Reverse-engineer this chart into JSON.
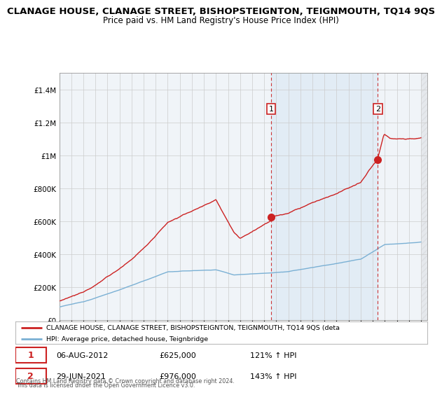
{
  "title": "CLANAGE HOUSE, CLANAGE STREET, BISHOPSTEIGNTON, TEIGNMOUTH, TQ14 9QS",
  "subtitle": "Price paid vs. HM Land Registry's House Price Index (HPI)",
  "ylim": [
    0,
    1500000
  ],
  "yticks": [
    0,
    200000,
    400000,
    600000,
    800000,
    1000000,
    1200000,
    1400000
  ],
  "ytick_labels": [
    "£0",
    "£200K",
    "£400K",
    "£600K",
    "£800K",
    "£1M",
    "£1.2M",
    "£1.4M"
  ],
  "year_start": 1995,
  "year_end": 2025,
  "sale1_year": 2012.583,
  "sale2_year": 2021.417,
  "sale1_date": "06-AUG-2012",
  "sale1_price": 625000,
  "sale1_pct": "121%",
  "sale2_date": "29-JUN-2021",
  "sale2_price": 976000,
  "sale2_pct": "143%",
  "red_line_color": "#cc2222",
  "blue_line_color": "#7ab0d4",
  "vline_color": "#cc2222",
  "shade_color": "#ddeeff",
  "legend_label1": "CLANAGE HOUSE, CLANAGE STREET, BISHOPSTEIGNTON, TEIGNMOUTH, TQ14 9QS (deta",
  "legend_label2": "HPI: Average price, detached house, Teignbridge",
  "footer1": "Contains HM Land Registry data © Crown copyright and database right 2024.",
  "footer2": "This data is licensed under the Open Government Licence v3.0.",
  "background_color": "#ffffff",
  "plot_bg_color": "#f0f4f8",
  "grid_color": "#cccccc",
  "title_fontsize": 9.5,
  "subtitle_fontsize": 8.5
}
